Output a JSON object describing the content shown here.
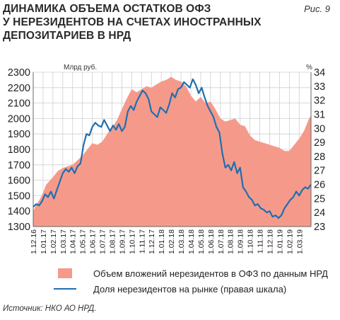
{
  "title_lines": [
    "ДИНАМИКА ОБЪЕМА ОСТАТКОВ ОФЗ",
    "У НЕРЕЗИДЕНТОВ НА СЧЕТАХ ИНОСТРАННЫХ",
    "ДЕПОЗИТАРИЕВ В НРД"
  ],
  "figure_label": "Рис. 9",
  "source": "Источник: НКО АО НРД.",
  "colors": {
    "area": "#f59a8a",
    "line": "#1f6fb0",
    "grid": "#cfcfcf"
  },
  "chart_data": {
    "type": "area",
    "left_unit": "Млрд руб.",
    "right_unit": "%",
    "ylim_left": [
      1300,
      2300
    ],
    "ylim_right": [
      23,
      34
    ],
    "left_ticks": [
      1300,
      1400,
      1500,
      1600,
      1700,
      1800,
      1900,
      2000,
      2100,
      2200,
      2300
    ],
    "right_ticks": [
      23,
      24,
      25,
      26,
      27,
      28,
      29,
      30,
      31,
      32,
      33,
      34
    ],
    "x_ticks": [
      "1.12.16",
      "1.01.17",
      "1.02.17",
      "1.03.17",
      "1.04.17",
      "1.05.17",
      "1.06.17",
      "1.07.17",
      "1.08.17",
      "1.09.17",
      "1.10.17",
      "1.11.17",
      "1.12.17",
      "1.01.18",
      "1.02.18",
      "1.03.18",
      "1.04.18",
      "1.05.18",
      "1.06.18",
      "1.07.18",
      "1.08.18",
      "1.09.18",
      "1.10.18",
      "1.11.18",
      "1.12.18",
      "1.01.19",
      "1.02.19",
      "1.03.19"
    ],
    "x_range_months": [
      0,
      28.2
    ],
    "series": [
      {
        "name": "Объем вложений нерезидентов в ОФЗ по данным НРД",
        "axis": "left",
        "type": "area",
        "x": [
          0,
          0.3,
          0.7,
          1.0,
          1.3,
          1.7,
          2.0,
          2.5,
          3.0,
          3.5,
          4.0,
          4.5,
          5.0,
          5.5,
          6.0,
          6.5,
          7.0,
          7.5,
          8.0,
          8.5,
          9.0,
          9.5,
          10.0,
          10.5,
          11.0,
          11.5,
          12.0,
          12.5,
          13.0,
          13.5,
          14.0,
          14.5,
          15.0,
          15.5,
          16.0,
          16.5,
          17.0,
          17.5,
          18.0,
          18.5,
          19.0,
          19.5,
          20.0,
          20.5,
          21.0,
          21.5,
          22.0,
          22.5,
          23.0,
          23.5,
          24.0,
          24.5,
          25.0,
          25.5,
          26.0,
          26.5,
          27.0,
          27.5,
          28.0,
          28.2
        ],
        "values": [
          1400,
          1440,
          1480,
          1520,
          1570,
          1600,
          1620,
          1660,
          1680,
          1690,
          1700,
          1730,
          1760,
          1800,
          1840,
          1830,
          1850,
          1900,
          1940,
          1990,
          2060,
          2130,
          2190,
          2170,
          2190,
          2210,
          2200,
          2220,
          2240,
          2250,
          2270,
          2250,
          2240,
          2210,
          2150,
          2110,
          2140,
          2100,
          2110,
          2060,
          2000,
          1980,
          1990,
          2000,
          1960,
          1950,
          1890,
          1860,
          1850,
          1840,
          1830,
          1820,
          1810,
          1790,
          1790,
          1830,
          1870,
          1920,
          2000,
          2020
        ]
      },
      {
        "name": "Доля нерезидентов на рынке (правая шкала)",
        "axis": "right",
        "type": "line",
        "x": [
          0,
          0.3,
          0.6,
          0.9,
          1.2,
          1.5,
          1.8,
          2.1,
          2.4,
          2.7,
          3.0,
          3.3,
          3.6,
          3.9,
          4.2,
          4.5,
          4.8,
          5.1,
          5.4,
          5.7,
          6.0,
          6.3,
          6.6,
          6.9,
          7.2,
          7.5,
          7.8,
          8.1,
          8.4,
          8.7,
          9.0,
          9.3,
          9.6,
          9.9,
          10.2,
          10.5,
          10.8,
          11.1,
          11.4,
          11.7,
          12.0,
          12.3,
          12.6,
          12.9,
          13.2,
          13.5,
          13.8,
          14.1,
          14.4,
          14.7,
          15.0,
          15.3,
          15.6,
          15.9,
          16.2,
          16.5,
          16.8,
          17.1,
          17.4,
          17.7,
          18.0,
          18.3,
          18.6,
          18.9,
          19.2,
          19.5,
          19.8,
          20.1,
          20.4,
          20.7,
          21.0,
          21.3,
          21.6,
          21.9,
          22.2,
          22.5,
          22.8,
          23.1,
          23.4,
          23.7,
          24.0,
          24.3,
          24.6,
          24.9,
          25.2,
          25.5,
          25.8,
          26.1,
          26.4,
          26.7,
          27.0,
          27.3,
          27.6,
          27.9,
          28.2
        ],
        "values": [
          24.4,
          24.6,
          24.5,
          24.8,
          25.3,
          25.1,
          25.5,
          25.0,
          25.6,
          26.2,
          26.8,
          27.1,
          26.9,
          27.2,
          26.8,
          27.3,
          27.5,
          28.8,
          29.6,
          29.5,
          30.1,
          30.4,
          30.2,
          30.1,
          30.6,
          30.2,
          29.8,
          30.2,
          29.9,
          30.3,
          29.8,
          30.1,
          31.2,
          31.6,
          31.3,
          31.9,
          32.3,
          32.7,
          32.5,
          32.1,
          31.2,
          31.0,
          30.8,
          31.5,
          31.3,
          31.1,
          31.7,
          32.5,
          32.2,
          32.8,
          32.9,
          33.3,
          33.1,
          32.9,
          33.5,
          33.1,
          32.5,
          32.9,
          32.2,
          31.6,
          31.2,
          30.8,
          30.1,
          29.7,
          28.2,
          27.2,
          27.4,
          27.0,
          27.6,
          26.8,
          27.2,
          25.8,
          25.5,
          25.1,
          24.9,
          24.5,
          24.6,
          24.3,
          24.2,
          24.0,
          24.1,
          23.7,
          23.8,
          23.6,
          23.8,
          24.3,
          24.6,
          24.9,
          25.1,
          25.5,
          25.2,
          25.6,
          25.8,
          25.7,
          26.0
        ]
      }
    ]
  }
}
